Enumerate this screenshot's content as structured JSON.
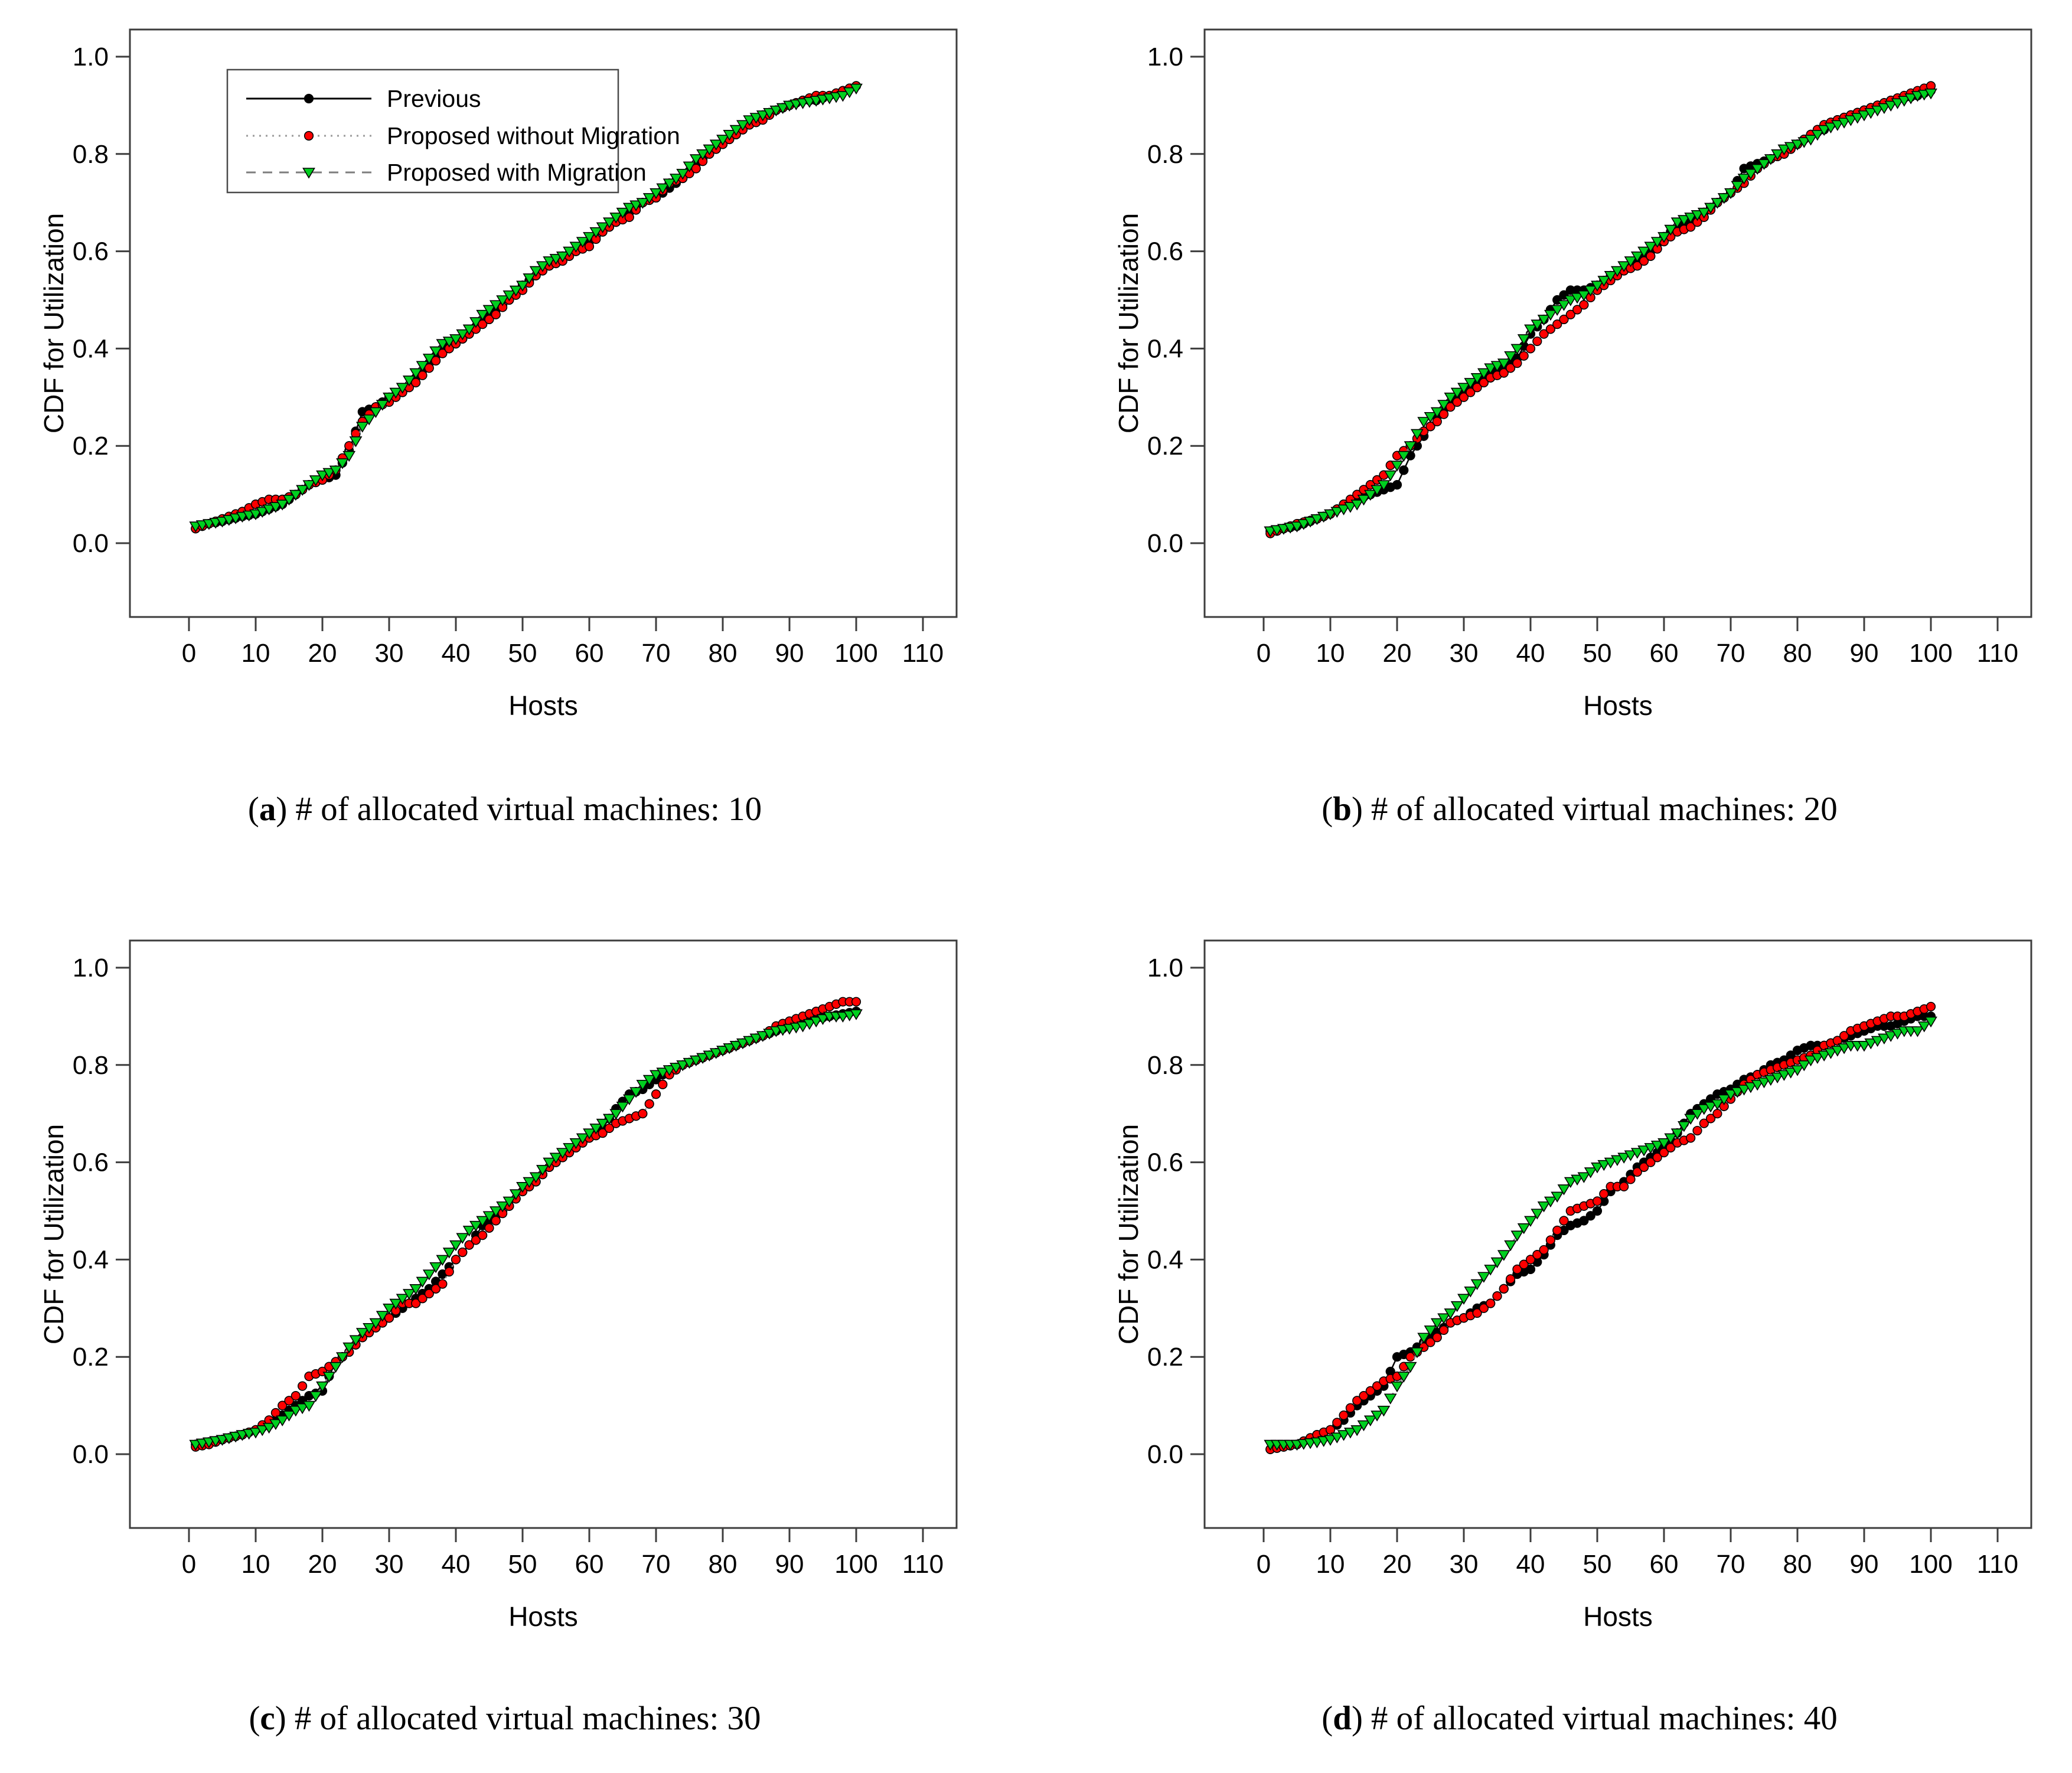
{
  "figure": {
    "ylabel": "CDF for Utilization",
    "xlabel": "Hosts",
    "axis_color": "#3d3d3d",
    "axes": {
      "xlim": [
        -9,
        115
      ],
      "ylim": [
        -0.15,
        1.06
      ],
      "xticks": [
        0,
        10,
        20,
        30,
        40,
        50,
        60,
        70,
        80,
        90,
        100,
        110
      ],
      "yticks": [
        0.0,
        0.2,
        0.4,
        0.6,
        0.8,
        1.0
      ],
      "grid": false
    },
    "legend": {
      "position": "upper-left-panel-a",
      "entries": [
        {
          "label": "Previous",
          "marker": "circle",
          "marker_color": "#000000",
          "line_style": "solid",
          "line_color": "#000000"
        },
        {
          "label": "Proposed without Migration",
          "marker": "circle",
          "marker_color": "#ff0000",
          "line_style": "dotted",
          "line_color": "#9a9a9a"
        },
        {
          "label": "Proposed with Migration",
          "marker": "triangle-down",
          "marker_color": "#00cf1f",
          "line_style": "dashed",
          "line_color": "#7d7d7d"
        }
      ]
    }
  },
  "chart_data": [
    {
      "id": "a",
      "type": "scatter",
      "caption_letter": "a",
      "caption_text": "# of allocated virtual machines: 10",
      "xlabel": "Hosts",
      "ylabel": "CDF for Utilization",
      "has_legend": true,
      "x_anchor_hosts": [
        1,
        3,
        5,
        8,
        10,
        12,
        14,
        16,
        18,
        20,
        22,
        24,
        26,
        28,
        30,
        32,
        34,
        36,
        38,
        40,
        42,
        44,
        46,
        48,
        50,
        52,
        54,
        56,
        58,
        60,
        62,
        64,
        66,
        68,
        70,
        72,
        74,
        76,
        78,
        80,
        82,
        84,
        86,
        88,
        90,
        92,
        94,
        96,
        98,
        100
      ],
      "series": [
        {
          "name": "Previous",
          "values": [
            0.03,
            0.04,
            0.045,
            0.055,
            0.06,
            0.07,
            0.08,
            0.1,
            0.12,
            0.13,
            0.14,
            0.19,
            0.27,
            0.28,
            0.3,
            0.31,
            0.34,
            0.37,
            0.4,
            0.41,
            0.43,
            0.46,
            0.48,
            0.5,
            0.53,
            0.55,
            0.57,
            0.59,
            0.6,
            0.62,
            0.64,
            0.66,
            0.68,
            0.7,
            0.71,
            0.73,
            0.75,
            0.78,
            0.8,
            0.82,
            0.84,
            0.86,
            0.88,
            0.89,
            0.9,
            0.91,
            0.91,
            0.92,
            0.93,
            0.94
          ]
        },
        {
          "name": "Proposed without Migration",
          "values": [
            0.03,
            0.04,
            0.05,
            0.065,
            0.08,
            0.09,
            0.09,
            0.1,
            0.12,
            0.13,
            0.15,
            0.2,
            0.25,
            0.28,
            0.29,
            0.31,
            0.33,
            0.36,
            0.39,
            0.41,
            0.43,
            0.45,
            0.47,
            0.5,
            0.52,
            0.55,
            0.57,
            0.58,
            0.6,
            0.61,
            0.64,
            0.66,
            0.67,
            0.7,
            0.71,
            0.74,
            0.75,
            0.77,
            0.8,
            0.82,
            0.84,
            0.86,
            0.87,
            0.89,
            0.9,
            0.91,
            0.92,
            0.92,
            0.93,
            0.94
          ]
        },
        {
          "name": "Proposed with Migration",
          "values": [
            0.035,
            0.04,
            0.045,
            0.055,
            0.06,
            0.07,
            0.08,
            0.1,
            0.12,
            0.14,
            0.15,
            0.18,
            0.24,
            0.27,
            0.3,
            0.32,
            0.35,
            0.38,
            0.41,
            0.42,
            0.44,
            0.47,
            0.49,
            0.51,
            0.53,
            0.56,
            0.58,
            0.59,
            0.61,
            0.63,
            0.65,
            0.67,
            0.69,
            0.7,
            0.72,
            0.74,
            0.76,
            0.79,
            0.81,
            0.83,
            0.85,
            0.87,
            0.88,
            0.89,
            0.9,
            0.905,
            0.91,
            0.915,
            0.92,
            0.935
          ]
        }
      ]
    },
    {
      "id": "b",
      "type": "scatter",
      "caption_letter": "b",
      "caption_text": "# of allocated virtual machines: 20",
      "xlabel": "Hosts",
      "ylabel": "CDF for Utilization",
      "has_legend": false,
      "x_anchor_hosts": [
        1,
        3,
        5,
        8,
        10,
        12,
        14,
        16,
        18,
        20,
        22,
        24,
        26,
        28,
        30,
        32,
        34,
        36,
        38,
        40,
        42,
        44,
        46,
        48,
        50,
        52,
        54,
        56,
        58,
        60,
        62,
        64,
        66,
        68,
        70,
        72,
        74,
        76,
        78,
        80,
        82,
        84,
        86,
        88,
        90,
        92,
        94,
        96,
        98,
        100
      ],
      "series": [
        {
          "name": "Previous",
          "values": [
            0.025,
            0.03,
            0.035,
            0.05,
            0.06,
            0.08,
            0.09,
            0.1,
            0.11,
            0.12,
            0.18,
            0.22,
            0.26,
            0.29,
            0.31,
            0.33,
            0.35,
            0.36,
            0.38,
            0.43,
            0.46,
            0.5,
            0.52,
            0.52,
            0.53,
            0.55,
            0.56,
            0.58,
            0.6,
            0.63,
            0.65,
            0.66,
            0.68,
            0.7,
            0.72,
            0.77,
            0.78,
            0.79,
            0.8,
            0.82,
            0.84,
            0.85,
            0.87,
            0.88,
            0.89,
            0.9,
            0.91,
            0.915,
            0.92,
            0.93
          ]
        },
        {
          "name": "Proposed without Migration",
          "values": [
            0.02,
            0.03,
            0.04,
            0.05,
            0.06,
            0.08,
            0.1,
            0.12,
            0.14,
            0.18,
            0.2,
            0.23,
            0.25,
            0.28,
            0.3,
            0.32,
            0.34,
            0.35,
            0.37,
            0.4,
            0.43,
            0.45,
            0.47,
            0.49,
            0.52,
            0.54,
            0.56,
            0.57,
            0.59,
            0.62,
            0.64,
            0.65,
            0.67,
            0.7,
            0.72,
            0.74,
            0.77,
            0.79,
            0.8,
            0.82,
            0.84,
            0.86,
            0.87,
            0.88,
            0.89,
            0.9,
            0.91,
            0.92,
            0.93,
            0.94
          ]
        },
        {
          "name": "Proposed with Migration",
          "values": [
            0.025,
            0.03,
            0.035,
            0.05,
            0.06,
            0.07,
            0.08,
            0.1,
            0.12,
            0.16,
            0.2,
            0.25,
            0.27,
            0.3,
            0.32,
            0.34,
            0.36,
            0.37,
            0.4,
            0.44,
            0.46,
            0.48,
            0.5,
            0.51,
            0.53,
            0.55,
            0.57,
            0.59,
            0.61,
            0.63,
            0.66,
            0.67,
            0.68,
            0.7,
            0.72,
            0.75,
            0.77,
            0.79,
            0.81,
            0.82,
            0.83,
            0.85,
            0.86,
            0.87,
            0.88,
            0.89,
            0.9,
            0.91,
            0.92,
            0.925
          ]
        }
      ]
    },
    {
      "id": "c",
      "type": "scatter",
      "caption_letter": "c",
      "caption_text": "# of allocated virtual machines: 30",
      "xlabel": "Hosts",
      "ylabel": "CDF for Utilization",
      "has_legend": false,
      "x_anchor_hosts": [
        1,
        3,
        5,
        8,
        10,
        12,
        14,
        16,
        18,
        20,
        22,
        24,
        26,
        28,
        30,
        32,
        34,
        36,
        38,
        40,
        42,
        44,
        46,
        48,
        50,
        52,
        54,
        56,
        58,
        60,
        62,
        64,
        66,
        68,
        70,
        72,
        74,
        76,
        78,
        80,
        82,
        84,
        86,
        88,
        90,
        92,
        94,
        96,
        98,
        100
      ],
      "series": [
        {
          "name": "Previous",
          "values": [
            0.02,
            0.025,
            0.03,
            0.04,
            0.05,
            0.06,
            0.08,
            0.1,
            0.12,
            0.13,
            0.19,
            0.21,
            0.24,
            0.26,
            0.28,
            0.3,
            0.32,
            0.34,
            0.37,
            0.4,
            0.43,
            0.47,
            0.49,
            0.51,
            0.54,
            0.56,
            0.59,
            0.61,
            0.63,
            0.65,
            0.67,
            0.71,
            0.74,
            0.75,
            0.77,
            0.79,
            0.8,
            0.81,
            0.82,
            0.83,
            0.84,
            0.85,
            0.86,
            0.87,
            0.88,
            0.89,
            0.895,
            0.9,
            0.905,
            0.91
          ]
        },
        {
          "name": "Proposed without Migration",
          "values": [
            0.015,
            0.02,
            0.03,
            0.04,
            0.05,
            0.07,
            0.1,
            0.12,
            0.16,
            0.17,
            0.19,
            0.21,
            0.24,
            0.26,
            0.28,
            0.31,
            0.31,
            0.33,
            0.35,
            0.4,
            0.43,
            0.45,
            0.48,
            0.51,
            0.54,
            0.56,
            0.59,
            0.61,
            0.63,
            0.65,
            0.66,
            0.68,
            0.69,
            0.7,
            0.74,
            0.78,
            0.8,
            0.81,
            0.82,
            0.83,
            0.84,
            0.85,
            0.86,
            0.88,
            0.89,
            0.9,
            0.91,
            0.92,
            0.93,
            0.93
          ]
        },
        {
          "name": "Proposed with Migration",
          "values": [
            0.02,
            0.025,
            0.03,
            0.04,
            0.045,
            0.055,
            0.07,
            0.09,
            0.1,
            0.14,
            0.18,
            0.22,
            0.25,
            0.27,
            0.3,
            0.32,
            0.34,
            0.37,
            0.4,
            0.43,
            0.46,
            0.48,
            0.5,
            0.52,
            0.55,
            0.57,
            0.6,
            0.62,
            0.64,
            0.66,
            0.68,
            0.7,
            0.73,
            0.76,
            0.78,
            0.79,
            0.8,
            0.81,
            0.82,
            0.83,
            0.84,
            0.85,
            0.86,
            0.87,
            0.875,
            0.88,
            0.89,
            0.9,
            0.9,
            0.905
          ]
        }
      ]
    },
    {
      "id": "d",
      "type": "scatter",
      "caption_letter": "d",
      "caption_text": "# of allocated virtual machines: 40",
      "xlabel": "Hosts",
      "ylabel": "CDF for Utilization",
      "has_legend": false,
      "x_anchor_hosts": [
        1,
        3,
        5,
        8,
        10,
        12,
        14,
        16,
        18,
        20,
        22,
        24,
        26,
        28,
        30,
        32,
        34,
        36,
        38,
        40,
        42,
        44,
        46,
        48,
        50,
        52,
        54,
        56,
        58,
        60,
        62,
        64,
        66,
        68,
        70,
        72,
        74,
        76,
        78,
        80,
        82,
        84,
        86,
        88,
        90,
        92,
        94,
        96,
        98,
        100
      ],
      "series": [
        {
          "name": "Previous",
          "values": [
            0.01,
            0.015,
            0.02,
            0.04,
            0.05,
            0.07,
            0.1,
            0.12,
            0.14,
            0.2,
            0.21,
            0.23,
            0.25,
            0.27,
            0.28,
            0.3,
            0.31,
            0.34,
            0.37,
            0.38,
            0.41,
            0.45,
            0.47,
            0.48,
            0.5,
            0.54,
            0.56,
            0.59,
            0.61,
            0.63,
            0.66,
            0.7,
            0.72,
            0.74,
            0.75,
            0.77,
            0.78,
            0.8,
            0.81,
            0.83,
            0.84,
            0.84,
            0.85,
            0.86,
            0.87,
            0.88,
            0.88,
            0.89,
            0.9,
            0.9
          ]
        },
        {
          "name": "Proposed without Migration",
          "values": [
            0.01,
            0.015,
            0.02,
            0.04,
            0.05,
            0.08,
            0.11,
            0.13,
            0.15,
            0.16,
            0.2,
            0.22,
            0.24,
            0.27,
            0.28,
            0.29,
            0.31,
            0.34,
            0.38,
            0.4,
            0.42,
            0.46,
            0.5,
            0.51,
            0.52,
            0.55,
            0.55,
            0.58,
            0.6,
            0.62,
            0.64,
            0.65,
            0.68,
            0.7,
            0.73,
            0.76,
            0.78,
            0.79,
            0.8,
            0.81,
            0.82,
            0.84,
            0.85,
            0.87,
            0.88,
            0.89,
            0.9,
            0.9,
            0.91,
            0.92
          ]
        },
        {
          "name": "Proposed with Migration",
          "values": [
            0.02,
            0.02,
            0.02,
            0.025,
            0.03,
            0.04,
            0.05,
            0.07,
            0.09,
            0.14,
            0.18,
            0.24,
            0.27,
            0.29,
            0.32,
            0.35,
            0.38,
            0.41,
            0.45,
            0.48,
            0.51,
            0.53,
            0.56,
            0.57,
            0.59,
            0.6,
            0.61,
            0.62,
            0.63,
            0.64,
            0.66,
            0.69,
            0.71,
            0.72,
            0.74,
            0.75,
            0.76,
            0.77,
            0.78,
            0.79,
            0.81,
            0.82,
            0.83,
            0.84,
            0.84,
            0.85,
            0.86,
            0.87,
            0.87,
            0.89
          ]
        }
      ]
    }
  ]
}
